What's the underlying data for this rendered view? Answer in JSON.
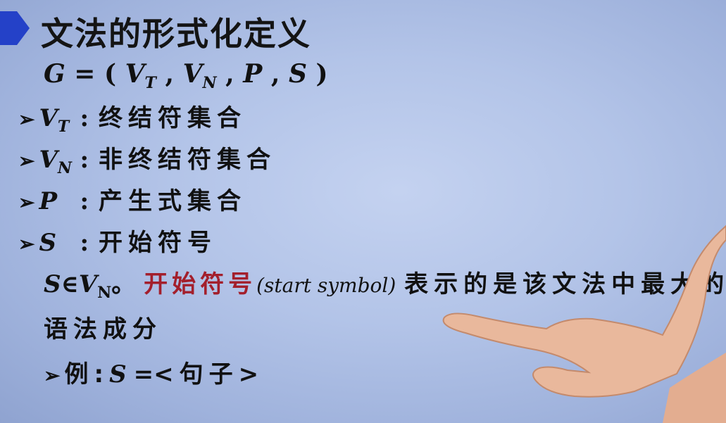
{
  "title": "文法的形式化定义",
  "formula": {
    "lhs": "G",
    "eq": "=",
    "open": "(",
    "vt_base": "V",
    "vt_sub": "T",
    "vn_base": "V",
    "vn_sub": "N",
    "p": "P",
    "s": "S",
    "comma": ",",
    "close": ")"
  },
  "bullets": [
    {
      "base": "V",
      "sub": "T",
      "colon": ":",
      "text": "终结符集合"
    },
    {
      "base": "V",
      "sub": "N",
      "colon": ":",
      "text": "非终结符集合"
    },
    {
      "base": "P",
      "sub": "",
      "colon": ":",
      "text": "产生式集合"
    },
    {
      "base": "S",
      "sub": "",
      "colon": ":",
      "text": "开始符号"
    }
  ],
  "start_line": {
    "sym": "S",
    "in": "∈",
    "base": "V",
    "sub": "N",
    "period": "。",
    "highlight": "开始符号",
    "english": "(start  symbol)",
    "rest": "表示的是该文法中最大的",
    "rest2": "语法成分"
  },
  "example": {
    "arrow": "➢",
    "label": "例:",
    "sym": "S",
    "eq": "=",
    "value": "<句子>"
  },
  "bullet_arrow": "➢",
  "colors": {
    "highlight": "#a31f2c",
    "marker": "#1f3fbf"
  }
}
